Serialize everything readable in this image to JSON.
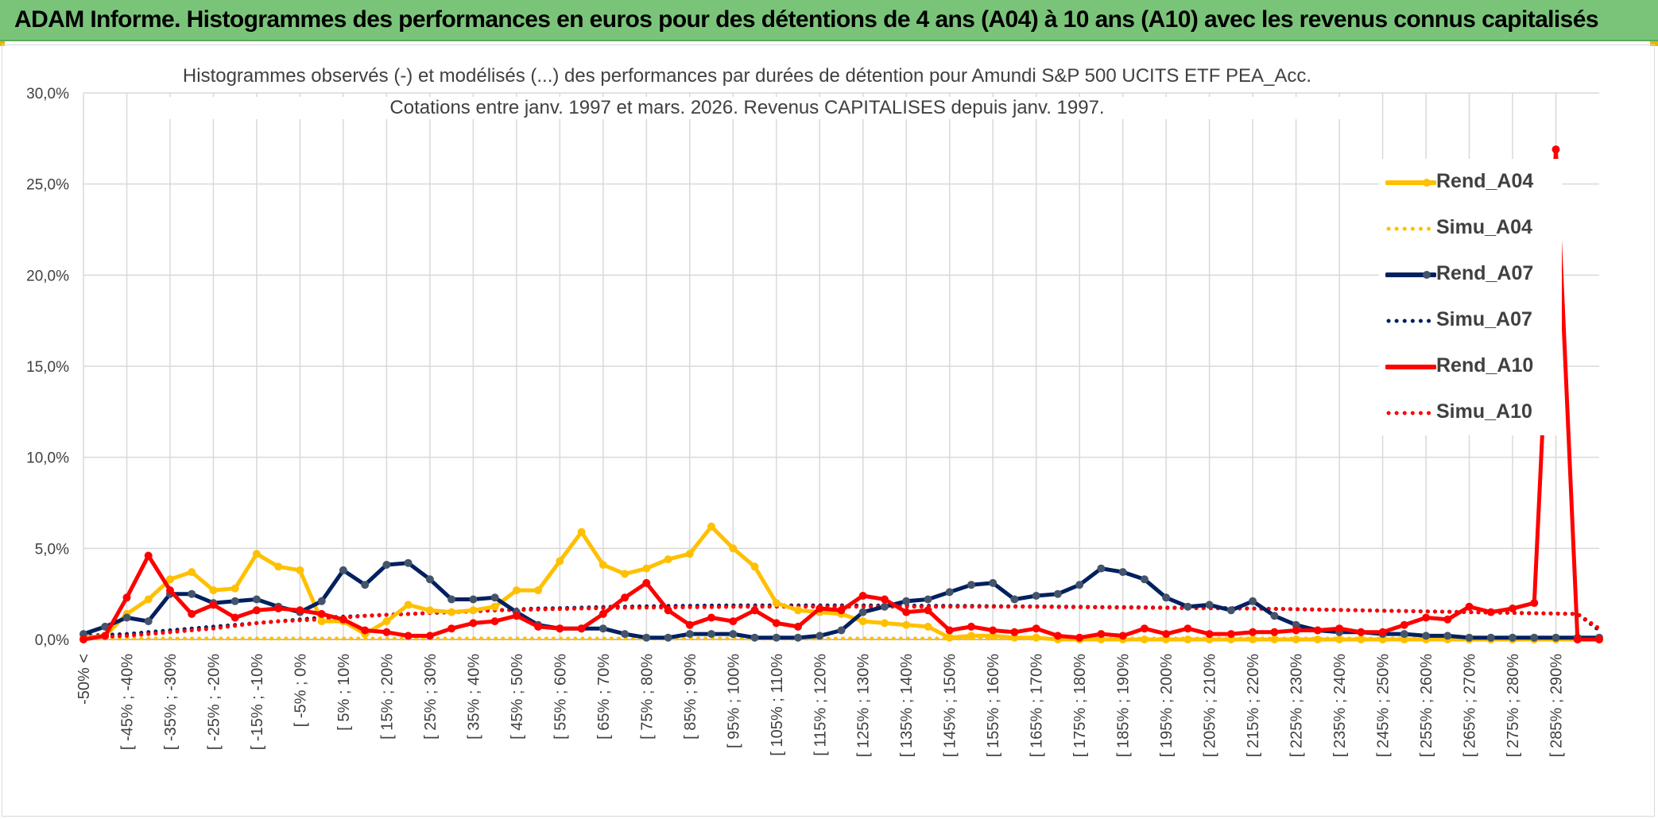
{
  "banner": {
    "title": "ADAM Informe. Histogrammes des performances en euros pour des détentions de 4 ans (A04) à 10 ans (A10) avec les revenus connus capitalisés"
  },
  "colors": {
    "banner": "#7ac47a",
    "A04": "#ffc000",
    "A07": "#002060",
    "A10": "#ff0000",
    "grid": "#d9d9d9",
    "text": "#404040"
  },
  "chart_data": {
    "type": "line",
    "title": "Histogrammes observés (-) et modélisés (...) des performances par durées de détention pour Amundi S&P 500 UCITS ETF PEA_Acc.",
    "subtitle": "Cotations entre janv. 1997 et mars. 2026. Revenus CAPITALISES depuis janv. 1997.",
    "xlabel": "",
    "ylabel": "",
    "ylim": [
      0,
      30
    ],
    "y_ticks": [
      "0,0%",
      "5,0%",
      "10,0%",
      "15,0%",
      "20,0%",
      "25,0%",
      "30,0%"
    ],
    "y_tick_values": [
      0,
      5,
      10,
      15,
      20,
      25,
      30
    ],
    "x_tick_labels": [
      "-50% <",
      "[ -45% ; -40%",
      "[ -35% ; -30%",
      "[ -25% ; -20%",
      "[ -15% ; -10%",
      "[ -5% ; 0%",
      "[ 5% ; 10%",
      "[ 15% ; 20%",
      "[ 25% ; 30%",
      "[ 35% ; 40%",
      "[ 45% ; 50%",
      "[ 55% ; 60%",
      "[ 65% ; 70%",
      "[ 75% ; 80%",
      "[ 85% ; 90%",
      "[ 95% ; 100%",
      "[ 105% ; 110%",
      "[ 115% ; 120%",
      "[ 125% ; 130%",
      "[ 135% ; 140%",
      "[ 145% ; 150%",
      "[ 155% ; 160%",
      "[ 165% ; 170%",
      "[ 175% ; 180%",
      "[ 185% ; 190%",
      "[ 195% ; 200%",
      "[ 205% ; 210%",
      "[ 215% ; 220%",
      "[ 225% ; 230%",
      "[ 235% ; 240%",
      "[ 245% ; 250%",
      "[ 255% ; 260%",
      "[ 265% ; 270%",
      "[ 275% ; 280%",
      "[ 285% ; 290%"
    ],
    "grid": true,
    "legend_position": "right",
    "series": [
      {
        "name": "Rend_A04",
        "style": "solid",
        "color": "#ffc000",
        "values": [
          0.1,
          0.2,
          1.4,
          2.2,
          3.3,
          3.7,
          2.7,
          2.8,
          4.7,
          4.0,
          3.8,
          1.0,
          1.0,
          0.3,
          1.0,
          1.9,
          1.6,
          1.5,
          1.6,
          1.8,
          2.7,
          2.7,
          4.3,
          5.9,
          4.1,
          3.6,
          3.9,
          4.4,
          4.7,
          6.2,
          5.0,
          4.0,
          2.0,
          1.6,
          1.5,
          1.4,
          1.0,
          0.9,
          0.8,
          0.7,
          0.1,
          0.2,
          0.2,
          0.1,
          0.1,
          0.0,
          0.0,
          0.0,
          0.0,
          0.0,
          0.0,
          0.0,
          0.0,
          0.0,
          0.0,
          0.0,
          0.0,
          0.0,
          0.0,
          0.0,
          0.0,
          0.0,
          0.0,
          0.0,
          0.0,
          0.0,
          0.0,
          0.0,
          0.0,
          0.0,
          0.0
        ]
      },
      {
        "name": "Simu_A04",
        "style": "dotted",
        "color": "#ffc000",
        "values": [
          0.05,
          0.05,
          0.05,
          0.05,
          0.05,
          0.05,
          0.05,
          0.05,
          0.05,
          0.05,
          0.05,
          0.05,
          0.05,
          0.05,
          0.05,
          0.05,
          0.05,
          0.05,
          0.05,
          0.05,
          0.05,
          0.05,
          0.05,
          0.05,
          0.05,
          0.05,
          0.05,
          0.05,
          0.05,
          0.05,
          0.05,
          0.05,
          0.05,
          0.05,
          0.05,
          0.05,
          0.05,
          0.05,
          0.05,
          0.05,
          0.05,
          0.05,
          0.05,
          0.05,
          0.05,
          0.05,
          0.05,
          0.05,
          0.05,
          0.05,
          0.05,
          0.05,
          0.05,
          0.05,
          0.05,
          0.05,
          0.05,
          0.05,
          0.05,
          0.05,
          0.05,
          0.05,
          0.05,
          0.05,
          0.05,
          0.05,
          0.05,
          0.05,
          0.05,
          0.05,
          0.05
        ]
      },
      {
        "name": "Rend_A07",
        "style": "solid",
        "color": "#002060",
        "values": [
          0.3,
          0.7,
          1.2,
          1.0,
          2.5,
          2.5,
          2.0,
          2.1,
          2.2,
          1.8,
          1.5,
          2.1,
          3.8,
          3.0,
          4.1,
          4.2,
          3.3,
          2.2,
          2.2,
          2.3,
          1.5,
          0.8,
          0.6,
          0.6,
          0.6,
          0.3,
          0.1,
          0.1,
          0.3,
          0.3,
          0.3,
          0.1,
          0.1,
          0.1,
          0.2,
          0.5,
          1.5,
          1.8,
          2.1,
          2.2,
          2.6,
          3.0,
          3.1,
          2.2,
          2.4,
          2.5,
          3.0,
          3.9,
          3.7,
          3.3,
          2.3,
          1.8,
          1.9,
          1.6,
          2.1,
          1.3,
          0.8,
          0.5,
          0.4,
          0.4,
          0.3,
          0.3,
          0.2,
          0.2,
          0.1,
          0.1,
          0.1,
          0.1,
          0.1,
          0.1,
          0.1
        ]
      },
      {
        "name": "Simu_A07",
        "style": "dotted",
        "color": "#002060",
        "values": [
          0.2,
          0.25,
          0.3,
          0.4,
          0.5,
          0.6,
          0.7,
          0.8,
          0.9,
          1.0,
          1.1,
          1.2,
          1.25,
          1.3,
          1.35,
          1.4,
          1.45,
          1.5,
          1.55,
          1.6,
          1.65,
          1.7,
          1.72,
          1.75,
          1.78,
          1.8,
          1.82,
          1.84,
          1.85,
          1.86,
          1.87,
          1.87,
          1.87,
          1.87,
          1.87,
          1.87,
          1.87,
          1.86,
          1.86,
          1.85,
          1.85,
          1.84,
          1.83,
          1.82,
          1.81,
          1.8,
          1.79,
          1.78,
          1.77,
          1.76,
          1.75,
          1.74,
          1.73,
          1.72,
          1.7,
          1.68,
          1.66,
          1.64,
          1.62,
          1.6,
          1.58,
          1.56,
          1.54,
          1.52,
          1.5,
          1.48,
          1.46,
          1.44,
          1.42,
          1.4,
          0.5
        ]
      },
      {
        "name": "Rend_A10",
        "style": "solid",
        "color": "#ff0000",
        "values": [
          0.0,
          0.2,
          2.3,
          4.6,
          2.7,
          1.4,
          1.9,
          1.2,
          1.6,
          1.7,
          1.6,
          1.4,
          1.1,
          0.5,
          0.4,
          0.2,
          0.2,
          0.6,
          0.9,
          1.0,
          1.3,
          0.7,
          0.6,
          0.6,
          1.4,
          2.3,
          3.1,
          1.6,
          0.8,
          1.2,
          1.0,
          1.6,
          0.9,
          0.7,
          1.7,
          1.6,
          2.4,
          2.2,
          1.5,
          1.6,
          0.5,
          0.7,
          0.5,
          0.4,
          0.6,
          0.2,
          0.1,
          0.3,
          0.2,
          0.6,
          0.3,
          0.6,
          0.3,
          0.3,
          0.4,
          0.4,
          0.5,
          0.5,
          0.6,
          0.4,
          0.4,
          0.8,
          1.2,
          1.1,
          1.8,
          1.5,
          1.7,
          2.0,
          26.9,
          0.0,
          0.0
        ]
      },
      {
        "name": "Simu_A10",
        "style": "dotted",
        "color": "#ff0000",
        "values": [
          0.1,
          0.15,
          0.2,
          0.3,
          0.4,
          0.5,
          0.6,
          0.75,
          0.9,
          1.0,
          1.05,
          1.1,
          1.2,
          1.3,
          1.35,
          1.4,
          1.45,
          1.5,
          1.55,
          1.6,
          1.62,
          1.65,
          1.67,
          1.7,
          1.72,
          1.74,
          1.75,
          1.76,
          1.77,
          1.78,
          1.79,
          1.8,
          1.8,
          1.8,
          1.8,
          1.8,
          1.8,
          1.8,
          1.8,
          1.8,
          1.8,
          1.8,
          1.8,
          1.8,
          1.79,
          1.78,
          1.77,
          1.76,
          1.75,
          1.74,
          1.73,
          1.72,
          1.71,
          1.7,
          1.69,
          1.68,
          1.66,
          1.64,
          1.62,
          1.6,
          1.58,
          1.56,
          1.54,
          1.52,
          1.5,
          1.48,
          1.46,
          1.44,
          1.42,
          1.4,
          0.6
        ]
      }
    ]
  }
}
